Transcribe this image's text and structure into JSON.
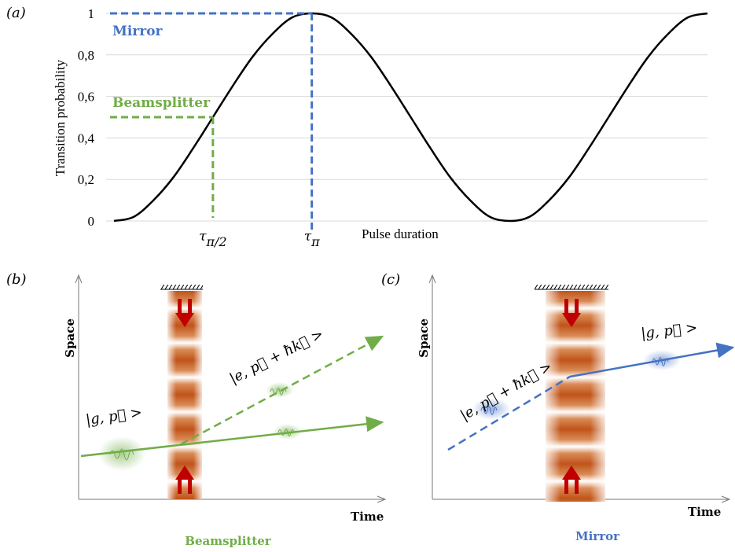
{
  "chart_data": {
    "type": "line",
    "panel_label": "(a)",
    "y_label": "Transition probability",
    "x_label": "Pulse duration",
    "x": [
      0,
      0.1,
      0.2,
      0.3,
      0.4,
      0.5,
      0.6,
      0.7,
      0.8,
      0.9,
      1,
      1.1,
      1.2,
      1.3,
      1.4,
      1.5,
      1.6,
      1.7,
      1.8,
      1.9,
      2,
      2.1,
      2.2,
      2.3,
      2.4,
      2.5,
      2.6,
      2.7,
      2.8,
      2.9,
      3
    ],
    "series": [
      {
        "color": "#000000",
        "values": [
          0,
          0.02,
          0.1,
          0.21,
          0.35,
          0.5,
          0.65,
          0.79,
          0.9,
          0.98,
          1,
          0.98,
          0.9,
          0.79,
          0.65,
          0.5,
          0.35,
          0.21,
          0.1,
          0.02,
          0,
          0.02,
          0.1,
          0.21,
          0.35,
          0.5,
          0.65,
          0.79,
          0.9,
          0.98,
          1
        ]
      }
    ],
    "xlim": [
      0,
      3
    ],
    "ylim": [
      0,
      1
    ],
    "yticks": [
      0,
      {
        "value": 0.2,
        "label": "0,2"
      },
      {
        "value": 0.4,
        "label": "0,4"
      },
      {
        "value": 0.6,
        "label": "0,6"
      },
      {
        "value": 0.8,
        "label": "0,8"
      },
      1
    ],
    "grid": true,
    "markers": [
      {
        "label": "Beamsplitter",
        "color": "#70ad47",
        "x": 0.5,
        "y": 0.5,
        "tick": {
          "symbol": "τ",
          "subscript": "π/2"
        }
      },
      {
        "label": "Mirror",
        "color": "#4472c4",
        "x": 1,
        "y": 1,
        "tick": {
          "symbol": "τ",
          "subscript": "π"
        }
      }
    ]
  },
  "panels": [
    {
      "label": "(b)",
      "y_axis": "Space",
      "x_axis": "Time",
      "states": [
        "|g, p⃗ >",
        "|e, p⃗ + ħk⃗ >"
      ],
      "caption": "Beamsplitter"
    },
    {
      "label": "(c)",
      "y_axis": "Space",
      "x_axis": "Time",
      "states": [
        "|g, p⃗ >",
        "|e, p⃗ + ħk⃗ >"
      ],
      "caption": "Mirror"
    }
  ]
}
